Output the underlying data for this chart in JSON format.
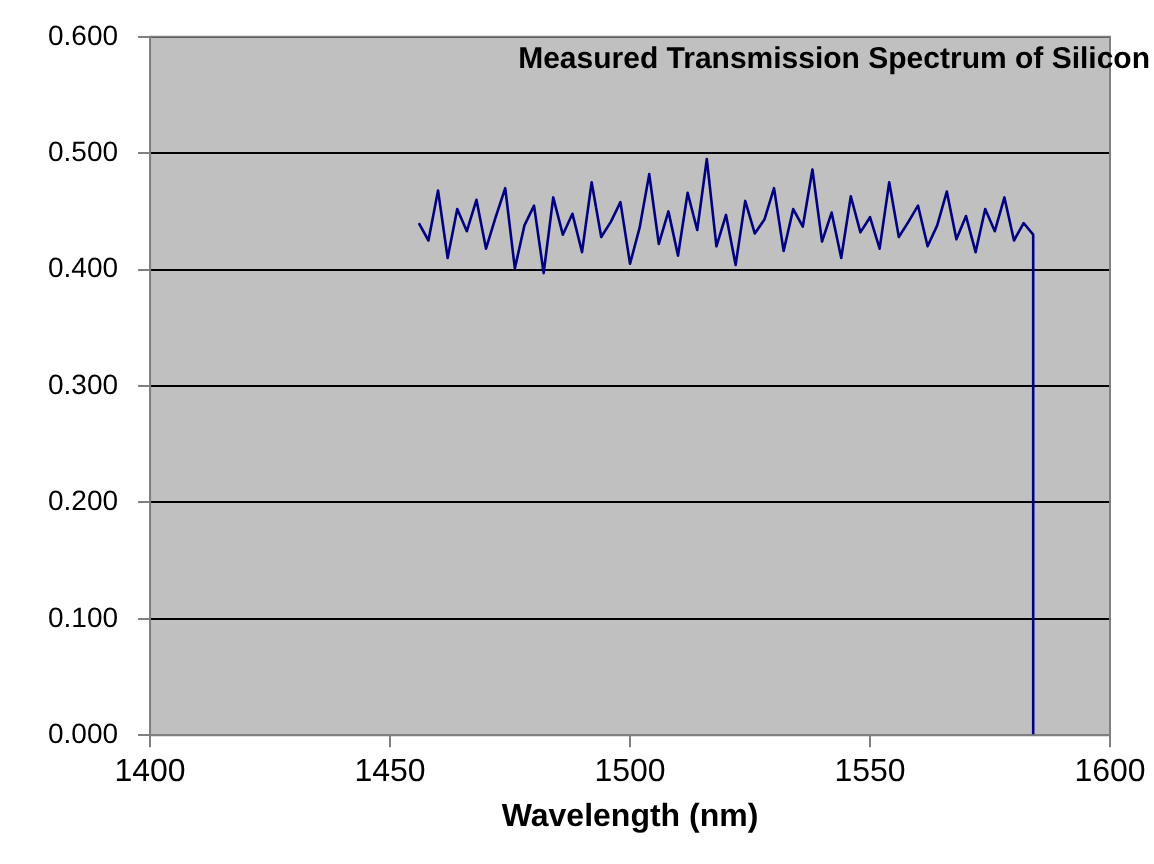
{
  "chart_data": {
    "type": "line",
    "title": "Measured Transmission Spectrum of Silicon",
    "xlabel": "Wavelength (nm)",
    "x": [
      1456,
      1458,
      1460,
      1462,
      1464,
      1466,
      1468,
      1470,
      1472,
      1474,
      1476,
      1478,
      1480,
      1482,
      1484,
      1486,
      1488,
      1490,
      1492,
      1494,
      1496,
      1498,
      1500,
      1502,
      1504,
      1506,
      1508,
      1510,
      1512,
      1514,
      1516,
      1518,
      1520,
      1522,
      1524,
      1526,
      1528,
      1530,
      1532,
      1534,
      1536,
      1538,
      1540,
      1542,
      1544,
      1546,
      1548,
      1550,
      1552,
      1554,
      1556,
      1558,
      1560,
      1562,
      1564,
      1566,
      1568,
      1570,
      1572,
      1574,
      1576,
      1578,
      1580,
      1582,
      1584,
      1584
    ],
    "series": [
      {
        "color": "#000080",
        "values": [
          0.44,
          0.425,
          0.468,
          0.41,
          0.452,
          0.433,
          0.46,
          0.418,
          0.445,
          0.47,
          0.401,
          0.438,
          0.455,
          0.397,
          0.462,
          0.43,
          0.448,
          0.415,
          0.475,
          0.428,
          0.441,
          0.458,
          0.405,
          0.436,
          0.482,
          0.422,
          0.45,
          0.412,
          0.466,
          0.434,
          0.495,
          0.42,
          0.447,
          0.404,
          0.459,
          0.431,
          0.443,
          0.47,
          0.416,
          0.452,
          0.437,
          0.486,
          0.424,
          0.449,
          0.41,
          0.463,
          0.432,
          0.445,
          0.418,
          0.475,
          0.428,
          0.441,
          0.455,
          0.42,
          0.438,
          0.467,
          0.426,
          0.446,
          0.415,
          0.452,
          0.433,
          0.462,
          0.425,
          0.44,
          0.43,
          0.0
        ]
      }
    ],
    "xlim": [
      1400,
      1600
    ],
    "xticks": [
      1400,
      1450,
      1500,
      1550,
      1600
    ],
    "ylim": [
      0,
      0.6
    ],
    "yticks": [
      {
        "value": 0,
        "label": "0.000"
      },
      {
        "value": 0.1,
        "label": "0.100"
      },
      {
        "value": 0.2,
        "label": "0.200"
      },
      {
        "value": 0.3,
        "label": "0.300"
      },
      {
        "value": 0.4,
        "label": "0.400"
      },
      {
        "value": 0.5,
        "label": "0.500"
      },
      {
        "value": 0.6,
        "label": "0.600"
      }
    ],
    "grid": "y",
    "legend": false,
    "marker": "none",
    "line_style": "solid"
  }
}
